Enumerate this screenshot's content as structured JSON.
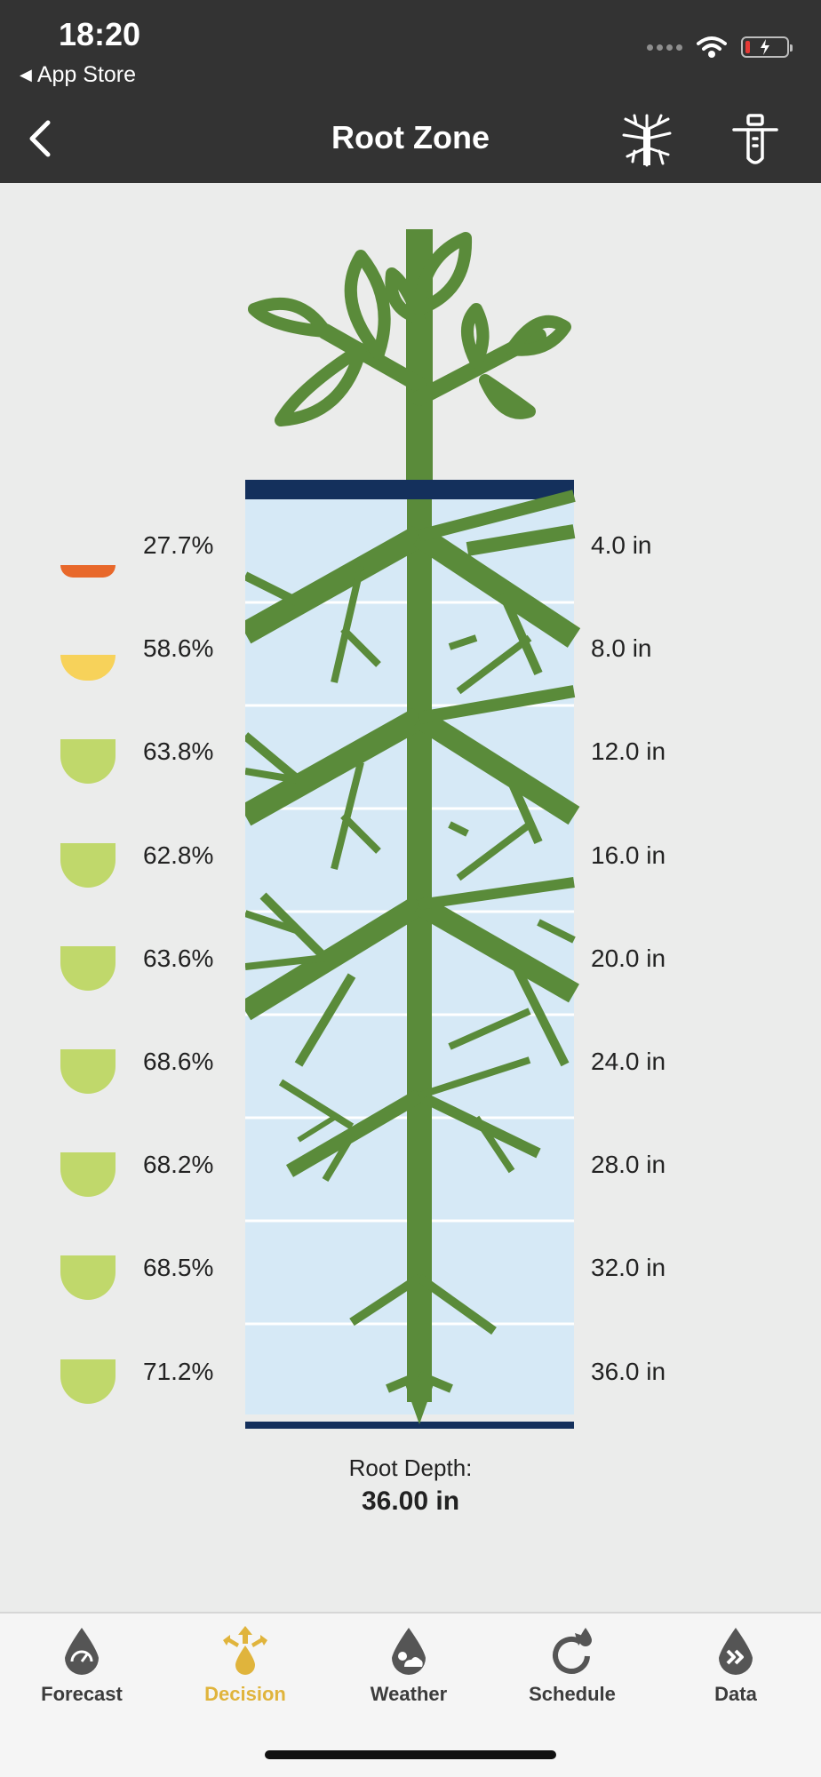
{
  "status_bar": {
    "time": "18:20",
    "back_app": "App Store"
  },
  "nav": {
    "title": "Root Zone"
  },
  "colors": {
    "bar_bg": "#333333",
    "plant_green": "#5a8b3a",
    "soil_blue": "#d6e9f6",
    "soil_edge": "#14305c",
    "gauge_red": "#e8682a",
    "gauge_yellow": "#f7d25a",
    "gauge_green": "#c0d86b",
    "active_tab": "#e0b43c"
  },
  "layers": [
    {
      "moisture": "27.7%",
      "moisture_fraction": 0.277,
      "status": "red",
      "depth": "4.0 in"
    },
    {
      "moisture": "58.6%",
      "moisture_fraction": 0.586,
      "status": "yellow",
      "depth": "8.0 in"
    },
    {
      "moisture": "63.8%",
      "moisture_fraction": 0.638,
      "status": "green",
      "depth": "12.0 in"
    },
    {
      "moisture": "62.8%",
      "moisture_fraction": 0.628,
      "status": "green",
      "depth": "16.0 in"
    },
    {
      "moisture": "63.6%",
      "moisture_fraction": 0.636,
      "status": "green",
      "depth": "20.0 in"
    },
    {
      "moisture": "68.6%",
      "moisture_fraction": 0.686,
      "status": "green",
      "depth": "24.0 in"
    },
    {
      "moisture": "68.2%",
      "moisture_fraction": 0.682,
      "status": "green",
      "depth": "28.0 in"
    },
    {
      "moisture": "68.5%",
      "moisture_fraction": 0.685,
      "status": "green",
      "depth": "32.0 in"
    },
    {
      "moisture": "71.2%",
      "moisture_fraction": 0.712,
      "status": "green",
      "depth": "36.0 in"
    }
  ],
  "root_depth": {
    "label": "Root Depth:",
    "value": "36.00 in"
  },
  "tabs": [
    {
      "label": "Forecast",
      "icon": "gauge-drop-icon"
    },
    {
      "label": "Decision",
      "icon": "decision-arrows-icon",
      "active": true
    },
    {
      "label": "Weather",
      "icon": "weather-drop-icon"
    },
    {
      "label": "Schedule",
      "icon": "refresh-drop-icon"
    },
    {
      "label": "Data",
      "icon": "chevron-drop-icon"
    }
  ]
}
